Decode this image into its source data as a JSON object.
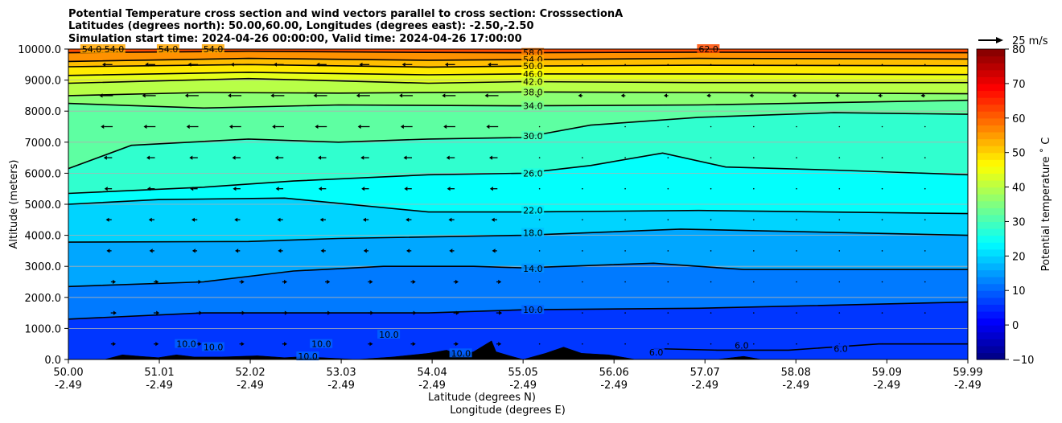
{
  "chart_data": {
    "type": "contour",
    "title_lines": [
      "Potential Temperature cross section and wind vectors parallel to cross section: CrosssectionA",
      "Latitudes (degrees north): 50.00,60.00, Longitudes (degrees east): -2.50,-2.50",
      "Simulation start time: 2024-04-26 00:00:00, Valid time: 2024-04-26 17:00:00"
    ],
    "xlabel_lines": [
      "Latitude (degrees N)",
      "Longitude (degrees E)"
    ],
    "ylabel": "Altitude (meters)",
    "x_ticks": [
      {
        "lat": "50.00",
        "lon": "-2.49"
      },
      {
        "lat": "51.01",
        "lon": "-2.49"
      },
      {
        "lat": "52.02",
        "lon": "-2.49"
      },
      {
        "lat": "53.03",
        "lon": "-2.49"
      },
      {
        "lat": "54.04",
        "lon": "-2.49"
      },
      {
        "lat": "55.05",
        "lon": "-2.49"
      },
      {
        "lat": "56.06",
        "lon": "-2.49"
      },
      {
        "lat": "57.07",
        "lon": "-2.49"
      },
      {
        "lat": "58.08",
        "lon": "-2.49"
      },
      {
        "lat": "59.09",
        "lon": "-2.49"
      },
      {
        "lat": "59.99",
        "lon": "-2.49"
      }
    ],
    "xlim": [
      50.0,
      59.99
    ],
    "y_ticks": [
      "0.0",
      "1000.0",
      "2000.0",
      "3000.0",
      "4000.0",
      "5000.0",
      "6000.0",
      "7000.0",
      "8000.0",
      "9000.0",
      "10000.0"
    ],
    "ylim": [
      0,
      10000
    ],
    "grid": "horizontal",
    "colorbar": {
      "label": "Potential temperature $^\\circ$C",
      "label_display": "Potential temperature ˚ C",
      "ticks": [
        "−10",
        "0",
        "10",
        "20",
        "30",
        "40",
        "50",
        "60",
        "70",
        "80"
      ],
      "range": [
        -10,
        80
      ],
      "colormap": "jet"
    },
    "quiver_key": {
      "label": "25 m/s",
      "value": 25
    },
    "contour_labels": [
      {
        "text": "58.0",
        "value": 58,
        "lat": 55.05,
        "alt": 9880
      },
      {
        "text": "54.0",
        "value": 54,
        "lat": 55.05,
        "alt": 9660
      },
      {
        "text": "50.0",
        "value": 50,
        "lat": 55.05,
        "alt": 9450
      },
      {
        "text": "46.0",
        "value": 46,
        "lat": 55.05,
        "alt": 9200
      },
      {
        "text": "42.0",
        "value": 42,
        "lat": 55.05,
        "alt": 8950
      },
      {
        "text": "38.0",
        "value": 38,
        "lat": 55.05,
        "alt": 8620
      },
      {
        "text": "34.0",
        "value": 34,
        "lat": 55.05,
        "alt": 8170
      },
      {
        "text": "30.0",
        "value": 30,
        "lat": 55.05,
        "alt": 7200
      },
      {
        "text": "26.0",
        "value": 26,
        "lat": 55.05,
        "alt": 6000
      },
      {
        "text": "22.0",
        "value": 22,
        "lat": 55.05,
        "alt": 4800
      },
      {
        "text": "18.0",
        "value": 18,
        "lat": 55.05,
        "alt": 4080
      },
      {
        "text": "14.0",
        "value": 14,
        "lat": 55.05,
        "alt": 2930
      },
      {
        "text": "10.0",
        "value": 10,
        "lat": 55.05,
        "alt": 1600
      },
      {
        "text": "62.0",
        "value": 62,
        "lat": 57.0,
        "alt": 10000
      },
      {
        "text": "54.0",
        "value": 54,
        "lat": 50.15,
        "alt": 10000
      },
      {
        "text": "54.0",
        "value": 54,
        "lat": 50.4,
        "alt": 10000
      },
      {
        "text": "54.0",
        "value": 54,
        "lat": 51.0,
        "alt": 10000
      },
      {
        "text": "54.0",
        "value": 54,
        "lat": 51.5,
        "alt": 10000
      },
      {
        "text": "10.0",
        "value": 10,
        "lat": 51.2,
        "alt": 500
      },
      {
        "text": "10.0",
        "value": 10,
        "lat": 51.5,
        "alt": 400
      },
      {
        "text": "10.0",
        "value": 10,
        "lat": 52.7,
        "alt": 500
      },
      {
        "text": "10.0",
        "value": 10,
        "lat": 52.55,
        "alt": 100
      },
      {
        "text": "10.0",
        "value": 10,
        "lat": 53.45,
        "alt": 800
      },
      {
        "text": "10.0",
        "value": 10,
        "lat": 54.25,
        "alt": 200
      },
      {
        "text": "6.0",
        "value": 6,
        "lat": 56.45,
        "alt": 230
      },
      {
        "text": "6.0",
        "value": 6,
        "lat": 57.4,
        "alt": 450
      },
      {
        "text": "6.0",
        "value": 6,
        "lat": 58.5,
        "alt": 350
      }
    ],
    "contours": [
      {
        "value": 58,
        "points": [
          [
            50.0,
            9880
          ],
          [
            52.0,
            9930
          ],
          [
            54.0,
            9890
          ],
          [
            55.05,
            9880
          ],
          [
            57.0,
            9900
          ],
          [
            59.99,
            9880
          ]
        ]
      },
      {
        "value": 54,
        "points": [
          [
            50.0,
            9600
          ],
          [
            52.0,
            9700
          ],
          [
            54.0,
            9640
          ],
          [
            55.05,
            9660
          ],
          [
            57.0,
            9700
          ],
          [
            59.99,
            9680
          ]
        ]
      },
      {
        "value": 50,
        "points": [
          [
            50.0,
            9430
          ],
          [
            52.0,
            9500
          ],
          [
            54.0,
            9420
          ],
          [
            55.05,
            9450
          ],
          [
            57.0,
            9480
          ],
          [
            59.99,
            9460
          ]
        ]
      },
      {
        "value": 46,
        "points": [
          [
            50.0,
            9150
          ],
          [
            52.0,
            9250
          ],
          [
            54.0,
            9170
          ],
          [
            55.05,
            9200
          ],
          [
            57.0,
            9200
          ],
          [
            59.99,
            9180
          ]
        ]
      },
      {
        "value": 42,
        "points": [
          [
            50.0,
            8900
          ],
          [
            52.0,
            9050
          ],
          [
            54.0,
            8900
          ],
          [
            55.05,
            8950
          ],
          [
            57.0,
            8920
          ],
          [
            59.99,
            8920
          ]
        ]
      },
      {
        "value": 38,
        "points": [
          [
            50.0,
            8500
          ],
          [
            51.5,
            8600
          ],
          [
            53.0,
            8580
          ],
          [
            55.05,
            8620
          ],
          [
            57.0,
            8600
          ],
          [
            59.99,
            8560
          ]
        ]
      },
      {
        "value": 34,
        "points": [
          [
            50.0,
            8250
          ],
          [
            51.5,
            8100
          ],
          [
            53.0,
            8200
          ],
          [
            55.05,
            8170
          ],
          [
            57.0,
            8200
          ],
          [
            59.99,
            8350
          ]
        ]
      },
      {
        "value": 30,
        "points": [
          [
            50.0,
            6150
          ],
          [
            50.7,
            6900
          ],
          [
            52.0,
            7100
          ],
          [
            53.0,
            7000
          ],
          [
            54.0,
            7100
          ],
          [
            55.05,
            7150
          ],
          [
            55.8,
            7550
          ],
          [
            57.0,
            7800
          ],
          [
            58.5,
            7950
          ],
          [
            59.99,
            7900
          ]
        ]
      },
      {
        "value": 26,
        "points": [
          [
            50.0,
            5350
          ],
          [
            51.5,
            5550
          ],
          [
            52.5,
            5750
          ],
          [
            54.0,
            5950
          ],
          [
            55.05,
            6000
          ],
          [
            55.8,
            6250
          ],
          [
            56.6,
            6650
          ],
          [
            57.3,
            6200
          ],
          [
            58.5,
            6100
          ],
          [
            59.99,
            5950
          ]
        ]
      },
      {
        "value": 22,
        "points": [
          [
            50.0,
            5000
          ],
          [
            51.0,
            5150
          ],
          [
            52.4,
            5200
          ],
          [
            54.0,
            4750
          ],
          [
            55.05,
            4750
          ],
          [
            57.0,
            4800
          ],
          [
            59.99,
            4700
          ]
        ]
      },
      {
        "value": 18,
        "points": [
          [
            50.0,
            3780
          ],
          [
            52.0,
            3800
          ],
          [
            53.0,
            3900
          ],
          [
            55.05,
            4000
          ],
          [
            56.8,
            4200
          ],
          [
            59.99,
            4000
          ]
        ]
      },
      {
        "value": 14,
        "points": [
          [
            50.0,
            2350
          ],
          [
            51.5,
            2500
          ],
          [
            52.5,
            2850
          ],
          [
            53.5,
            3000
          ],
          [
            54.5,
            3000
          ],
          [
            55.05,
            2950
          ],
          [
            56.5,
            3100
          ],
          [
            57.5,
            2900
          ],
          [
            59.99,
            2900
          ]
        ]
      },
      {
        "value": 10,
        "points": [
          [
            50.0,
            1300
          ],
          [
            51.5,
            1500
          ],
          [
            53.0,
            1500
          ],
          [
            54.0,
            1500
          ],
          [
            55.05,
            1600
          ],
          [
            57.0,
            1650
          ],
          [
            59.99,
            1850
          ]
        ]
      },
      {
        "value": 6,
        "points": [
          [
            56.5,
            350
          ],
          [
            57.2,
            300
          ],
          [
            58.0,
            300
          ],
          [
            59.0,
            500
          ],
          [
            59.99,
            500
          ]
        ]
      }
    ],
    "terrain": [
      [
        50.0,
        0
      ],
      [
        50.4,
        0
      ],
      [
        50.6,
        150
      ],
      [
        50.8,
        100
      ],
      [
        51.0,
        60
      ],
      [
        51.2,
        150
      ],
      [
        51.4,
        80
      ],
      [
        51.7,
        80
      ],
      [
        52.1,
        120
      ],
      [
        52.4,
        60
      ],
      [
        52.6,
        90
      ],
      [
        53.2,
        0
      ],
      [
        53.6,
        80
      ],
      [
        54.0,
        200
      ],
      [
        54.2,
        300
      ],
      [
        54.35,
        150
      ],
      [
        54.5,
        250
      ],
      [
        54.7,
        600
      ],
      [
        54.75,
        250
      ],
      [
        54.9,
        120
      ],
      [
        55.05,
        0
      ],
      [
        55.3,
        200
      ],
      [
        55.5,
        400
      ],
      [
        55.7,
        200
      ],
      [
        56.0,
        150
      ],
      [
        56.3,
        0
      ],
      [
        57.2,
        0
      ],
      [
        57.5,
        100
      ],
      [
        57.7,
        0
      ],
      [
        59.99,
        0
      ]
    ],
    "wind": {
      "description": "arrows parallel to the cross section; mostly southward (leftward) aloft, weak near surface",
      "sample_levels": [
        {
          "alt": 9500,
          "u": -8
        },
        {
          "alt": 8500,
          "u": -12
        },
        {
          "alt": 7500,
          "u": -10
        },
        {
          "alt": 6500,
          "u": -6
        },
        {
          "alt": 5500,
          "u": -5
        },
        {
          "alt": 4500,
          "u": -3
        },
        {
          "alt": 3500,
          "u": -2
        },
        {
          "alt": 2500,
          "u": 2
        },
        {
          "alt": 1500,
          "u": 3
        },
        {
          "alt": 500,
          "u": 2
        }
      ]
    }
  }
}
